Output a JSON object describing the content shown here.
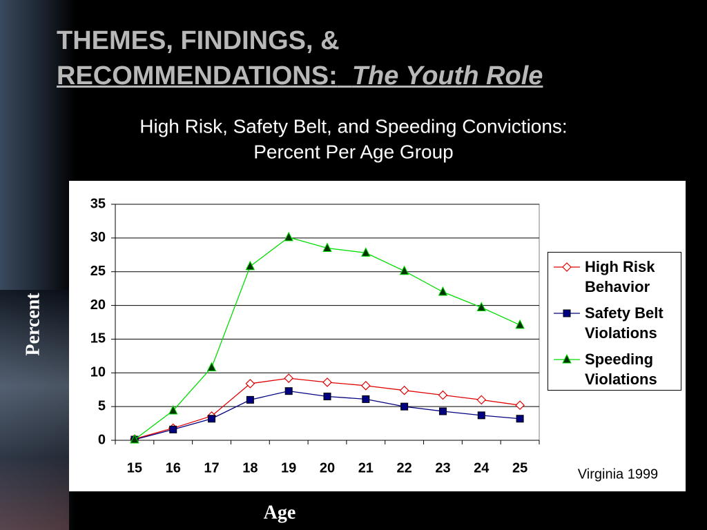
{
  "slide": {
    "title_line1": "THEMES, FINDINGS, &",
    "title_line2": "RECOMMENDATIONS:",
    "title_italic": "The Youth Role",
    "note": "Virginia 1999"
  },
  "chart_data": {
    "type": "line",
    "title": [
      "High Risk, Safety Belt, and Speeding Convictions:",
      "Percent Per Age Group"
    ],
    "x_label": "Age",
    "y_label": "Percent",
    "categories": [
      "15",
      "16",
      "17",
      "18",
      "19",
      "20",
      "21",
      "22",
      "23",
      "24",
      "25"
    ],
    "series": [
      {
        "name": "High Risk Behavior",
        "color": "#e00000",
        "marker": "diamond",
        "values": [
          0.2,
          1.8,
          3.6,
          8.4,
          9.2,
          8.6,
          8.1,
          7.4,
          6.7,
          6.0,
          5.2
        ]
      },
      {
        "name": "Safety Belt Violations",
        "color": "#000080",
        "marker": "square",
        "values": [
          0.1,
          1.6,
          3.2,
          6.0,
          7.3,
          6.5,
          6.1,
          5.0,
          4.3,
          3.7,
          3.2
        ]
      },
      {
        "name": "Speeding Violations",
        "color": "#00dd00",
        "marker": "triangle",
        "values": [
          0.1,
          4.4,
          10.8,
          25.8,
          30.1,
          28.5,
          27.8,
          25.1,
          22.0,
          19.7,
          17.1
        ]
      }
    ],
    "ylim": [
      0,
      35
    ],
    "yticks": [
      0,
      5,
      10,
      15,
      20,
      25,
      30,
      35
    ],
    "grid": true,
    "legend": "right"
  }
}
